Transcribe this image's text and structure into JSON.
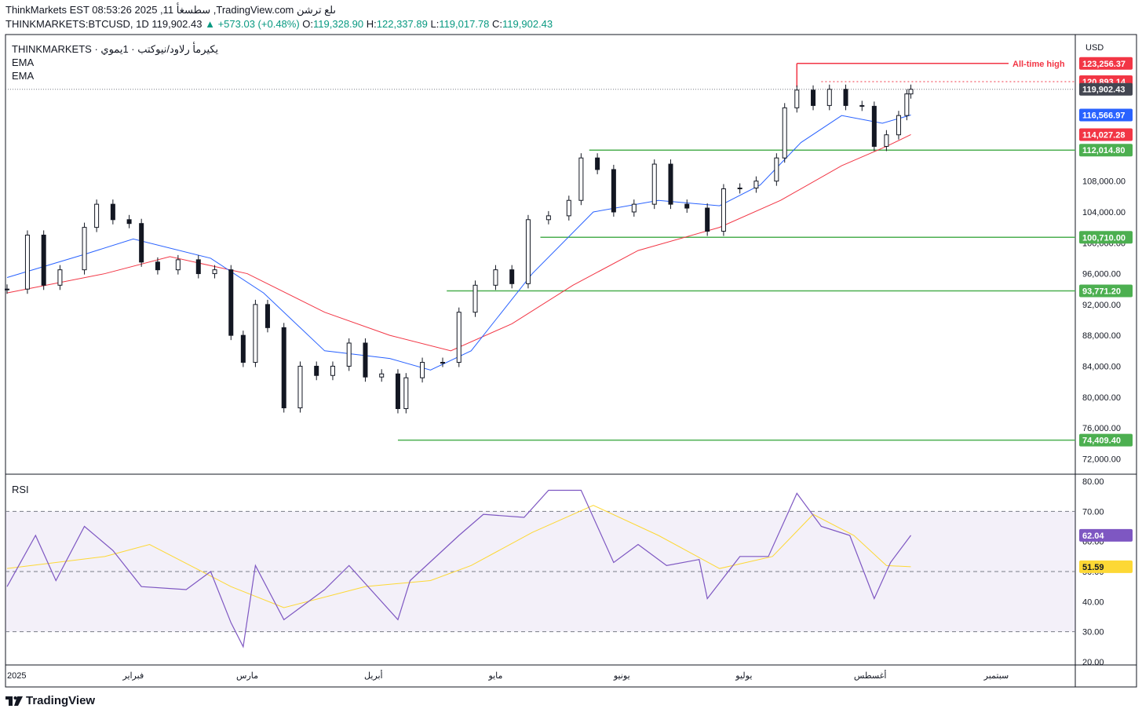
{
  "header": {
    "line1": "ThinkMarkets EST 08:53:26 2025 ,11 سطسغأ ,TradingView.com ىلع ترشن",
    "symbol": "THINKMARKETS:BTCUSD, 1D",
    "last": "119,902.43",
    "change": "▲ +573.03 (+0.48%)",
    "o_label": "O:",
    "o": "119,328.90",
    "h_label": "H:",
    "h": "122,337.89",
    "l_label": "L:",
    "l": "119,017.78",
    "c_label": "C:",
    "c": "119,902.43"
  },
  "legend": {
    "title": "THINKMARKETS · يكيرمأ رلاود/نيوكتب · 1يموي",
    "ema1": "EMA",
    "ema2": "EMA",
    "rsi": "RSI"
  },
  "currency": "USD",
  "brand": "TradingView",
  "colors": {
    "up": "#131722",
    "ema_fast": "#2962ff",
    "ema_slow": "#f23645",
    "level": "#4caf50",
    "rsi": "#7e57c2",
    "rsi_ma": "#fdd835",
    "ath": "#f23645",
    "last_badge": "#434651"
  },
  "chart_data": [
    {
      "type": "candlestick",
      "title": "THINKMARKETS:BTCUSD, 1D",
      "ylim": [
        70000,
        127000
      ],
      "y_ticks": [
        72000,
        76000,
        80000,
        84000,
        88000,
        92000,
        96000,
        100000,
        104000,
        108000
      ],
      "y_tick_labels": [
        "72,000.00",
        "76,000.00",
        "80,000.00",
        "84,000.00",
        "88,000.00",
        "92,000.00",
        "96,000.00",
        "100,000.00",
        "104,000.00",
        "108,000.00"
      ],
      "x_labels": [
        "2025",
        "فبراير",
        "مارس",
        "أبريل",
        "مايو",
        "يونيو",
        "يوليو",
        "أغسطس",
        "سبتمبر"
      ],
      "x_label_dates": [
        "2025-01-01",
        "2025-02-01",
        "2025-03-01",
        "2025-04-01",
        "2025-05-01",
        "2025-06-01",
        "2025-07-01",
        "2025-08-01",
        "2025-09-01"
      ],
      "price_series": [
        {
          "date": "2025-01-01",
          "close": 94000
        },
        {
          "date": "2025-01-06",
          "close": 101000
        },
        {
          "date": "2025-01-10",
          "close": 94500
        },
        {
          "date": "2025-01-14",
          "close": 96500
        },
        {
          "date": "2025-01-20",
          "close": 102000
        },
        {
          "date": "2025-01-23",
          "close": 105000
        },
        {
          "date": "2025-01-27",
          "close": 103000
        },
        {
          "date": "2025-01-31",
          "close": 102500
        },
        {
          "date": "2025-02-03",
          "close": 97500
        },
        {
          "date": "2025-02-07",
          "close": 96500
        },
        {
          "date": "2025-02-12",
          "close": 97800
        },
        {
          "date": "2025-02-17",
          "close": 96000
        },
        {
          "date": "2025-02-21",
          "close": 96500
        },
        {
          "date": "2025-02-25",
          "close": 88000
        },
        {
          "date": "2025-02-28",
          "close": 84500
        },
        {
          "date": "2025-03-03",
          "close": 92000
        },
        {
          "date": "2025-03-06",
          "close": 89000
        },
        {
          "date": "2025-03-10",
          "close": 78600
        },
        {
          "date": "2025-03-14",
          "close": 84000
        },
        {
          "date": "2025-03-18",
          "close": 82800
        },
        {
          "date": "2025-03-22",
          "close": 84000
        },
        {
          "date": "2025-03-26",
          "close": 87000
        },
        {
          "date": "2025-03-30",
          "close": 82600
        },
        {
          "date": "2025-04-03",
          "close": 83000
        },
        {
          "date": "2025-04-07",
          "close": 78500
        },
        {
          "date": "2025-04-09",
          "close": 82500
        },
        {
          "date": "2025-04-13",
          "close": 84500
        },
        {
          "date": "2025-04-18",
          "close": 84500
        },
        {
          "date": "2025-04-22",
          "close": 91000
        },
        {
          "date": "2025-04-26",
          "close": 94500
        },
        {
          "date": "2025-05-01",
          "close": 96500
        },
        {
          "date": "2025-05-05",
          "close": 94700
        },
        {
          "date": "2025-05-09",
          "close": 103000
        },
        {
          "date": "2025-05-14",
          "close": 103500
        },
        {
          "date": "2025-05-19",
          "close": 105500
        },
        {
          "date": "2025-05-22",
          "close": 111000
        },
        {
          "date": "2025-05-26",
          "close": 109500
        },
        {
          "date": "2025-05-30",
          "close": 104000
        },
        {
          "date": "2025-06-04",
          "close": 105000
        },
        {
          "date": "2025-06-09",
          "close": 110200
        },
        {
          "date": "2025-06-13",
          "close": 105000
        },
        {
          "date": "2025-06-17",
          "close": 104500
        },
        {
          "date": "2025-06-22",
          "close": 101500
        },
        {
          "date": "2025-06-26",
          "close": 107000
        },
        {
          "date": "2025-06-30",
          "close": 107100
        },
        {
          "date": "2025-07-04",
          "close": 108000
        },
        {
          "date": "2025-07-09",
          "close": 111000
        },
        {
          "date": "2025-07-11",
          "close": 117500
        },
        {
          "date": "2025-07-14",
          "close": 119800
        },
        {
          "date": "2025-07-18",
          "close": 117800
        },
        {
          "date": "2025-07-22",
          "close": 119900
        },
        {
          "date": "2025-07-26",
          "close": 117800
        },
        {
          "date": "2025-07-30",
          "close": 117700
        },
        {
          "date": "2025-08-02",
          "close": 112500
        },
        {
          "date": "2025-08-05",
          "close": 114000
        },
        {
          "date": "2025-08-08",
          "close": 116500
        },
        {
          "date": "2025-08-10",
          "close": 119300
        },
        {
          "date": "2025-08-11",
          "close": 119902.43
        }
      ],
      "ema_fast": [
        {
          "date": "2025-01-01",
          "value": 95500
        },
        {
          "date": "2025-01-20",
          "value": 98500
        },
        {
          "date": "2025-02-01",
          "value": 100500
        },
        {
          "date": "2025-02-20",
          "value": 98000
        },
        {
          "date": "2025-03-05",
          "value": 93500
        },
        {
          "date": "2025-03-20",
          "value": 86000
        },
        {
          "date": "2025-04-05",
          "value": 85000
        },
        {
          "date": "2025-04-15",
          "value": 83500
        },
        {
          "date": "2025-04-25",
          "value": 86000
        },
        {
          "date": "2025-05-10",
          "value": 96000
        },
        {
          "date": "2025-05-25",
          "value": 104000
        },
        {
          "date": "2025-06-10",
          "value": 105500
        },
        {
          "date": "2025-06-25",
          "value": 104800
        },
        {
          "date": "2025-07-05",
          "value": 107500
        },
        {
          "date": "2025-07-15",
          "value": 113000
        },
        {
          "date": "2025-07-25",
          "value": 116500
        },
        {
          "date": "2025-08-04",
          "value": 115500
        },
        {
          "date": "2025-08-11",
          "value": 116566.97
        }
      ],
      "ema_slow": [
        {
          "date": "2025-01-01",
          "value": 93500
        },
        {
          "date": "2025-01-25",
          "value": 96000
        },
        {
          "date": "2025-02-10",
          "value": 98200
        },
        {
          "date": "2025-03-01",
          "value": 96000
        },
        {
          "date": "2025-03-20",
          "value": 91000
        },
        {
          "date": "2025-04-05",
          "value": 88000
        },
        {
          "date": "2025-04-20",
          "value": 86000
        },
        {
          "date": "2025-05-05",
          "value": 89500
        },
        {
          "date": "2025-05-20",
          "value": 94500
        },
        {
          "date": "2025-06-05",
          "value": 99000
        },
        {
          "date": "2025-06-25",
          "value": 102000
        },
        {
          "date": "2025-07-10",
          "value": 105500
        },
        {
          "date": "2025-07-25",
          "value": 110000
        },
        {
          "date": "2025-08-05",
          "value": 112500
        },
        {
          "date": "2025-08-11",
          "value": 114027.28
        }
      ],
      "levels": [
        {
          "value": 112014.8,
          "label": "112,014.80"
        },
        {
          "value": 100710.0,
          "label": "100,710.00"
        },
        {
          "value": 93771.2,
          "label": "93,771.20"
        },
        {
          "value": 74409.4,
          "label": "74,409.40"
        }
      ],
      "ath": {
        "value": 123256.37,
        "label": "123,256.37",
        "text": "All-time high"
      },
      "high_line": {
        "value": 120893.14,
        "label": "120,893.14"
      },
      "last_price": {
        "value": 119902.43,
        "label": "119,902.43"
      },
      "ema_fast_last": {
        "value": 116566.97,
        "label": "116,566.97"
      },
      "ema_slow_last": {
        "value": 114027.28,
        "label": "114,027.28"
      }
    },
    {
      "type": "line",
      "title": "RSI",
      "ylim": [
        20,
        80
      ],
      "y_ticks": [
        20,
        30,
        40,
        50,
        60,
        70,
        80
      ],
      "y_tick_labels": [
        "20.00",
        "30.00",
        "40.00",
        "50.00",
        "60.00",
        "70.00",
        "80.00"
      ],
      "bands": [
        30,
        50,
        70
      ],
      "rsi": [
        {
          "date": "2025-01-01",
          "value": 45
        },
        {
          "date": "2025-01-08",
          "value": 62
        },
        {
          "date": "2025-01-13",
          "value": 47
        },
        {
          "date": "2025-01-20",
          "value": 65
        },
        {
          "date": "2025-01-27",
          "value": 57
        },
        {
          "date": "2025-02-03",
          "value": 45
        },
        {
          "date": "2025-02-14",
          "value": 44
        },
        {
          "date": "2025-02-20",
          "value": 50
        },
        {
          "date": "2025-02-25",
          "value": 33
        },
        {
          "date": "2025-02-28",
          "value": 25
        },
        {
          "date": "2025-03-03",
          "value": 52
        },
        {
          "date": "2025-03-10",
          "value": 34
        },
        {
          "date": "2025-03-20",
          "value": 44
        },
        {
          "date": "2025-03-26",
          "value": 52
        },
        {
          "date": "2025-04-07",
          "value": 34
        },
        {
          "date": "2025-04-10",
          "value": 47
        },
        {
          "date": "2025-04-22",
          "value": 62
        },
        {
          "date": "2025-04-28",
          "value": 69
        },
        {
          "date": "2025-05-08",
          "value": 68
        },
        {
          "date": "2025-05-14",
          "value": 77
        },
        {
          "date": "2025-05-22",
          "value": 77
        },
        {
          "date": "2025-05-30",
          "value": 53
        },
        {
          "date": "2025-06-05",
          "value": 59
        },
        {
          "date": "2025-06-12",
          "value": 52
        },
        {
          "date": "2025-06-20",
          "value": 54
        },
        {
          "date": "2025-06-22",
          "value": 41
        },
        {
          "date": "2025-06-30",
          "value": 55
        },
        {
          "date": "2025-07-07",
          "value": 55
        },
        {
          "date": "2025-07-14",
          "value": 76
        },
        {
          "date": "2025-07-20",
          "value": 65
        },
        {
          "date": "2025-07-27",
          "value": 62
        },
        {
          "date": "2025-08-02",
          "value": 41
        },
        {
          "date": "2025-08-06",
          "value": 53
        },
        {
          "date": "2025-08-11",
          "value": 62.04
        }
      ],
      "rsi_ma": [
        {
          "date": "2025-01-01",
          "value": 51
        },
        {
          "date": "2025-01-25",
          "value": 55
        },
        {
          "date": "2025-02-05",
          "value": 59
        },
        {
          "date": "2025-02-25",
          "value": 45
        },
        {
          "date": "2025-03-10",
          "value": 38
        },
        {
          "date": "2025-03-30",
          "value": 45
        },
        {
          "date": "2025-04-15",
          "value": 47
        },
        {
          "date": "2025-04-25",
          "value": 52
        },
        {
          "date": "2025-05-10",
          "value": 63
        },
        {
          "date": "2025-05-25",
          "value": 72
        },
        {
          "date": "2025-06-10",
          "value": 62
        },
        {
          "date": "2025-06-25",
          "value": 51
        },
        {
          "date": "2025-07-08",
          "value": 55
        },
        {
          "date": "2025-07-18",
          "value": 69
        },
        {
          "date": "2025-07-28",
          "value": 62
        },
        {
          "date": "2025-08-05",
          "value": 52
        },
        {
          "date": "2025-08-11",
          "value": 51.59
        }
      ],
      "rsi_last": {
        "value": 62.04,
        "label": "62.04"
      },
      "rsi_ma_last": {
        "value": 51.59,
        "label": "51.59"
      }
    }
  ]
}
